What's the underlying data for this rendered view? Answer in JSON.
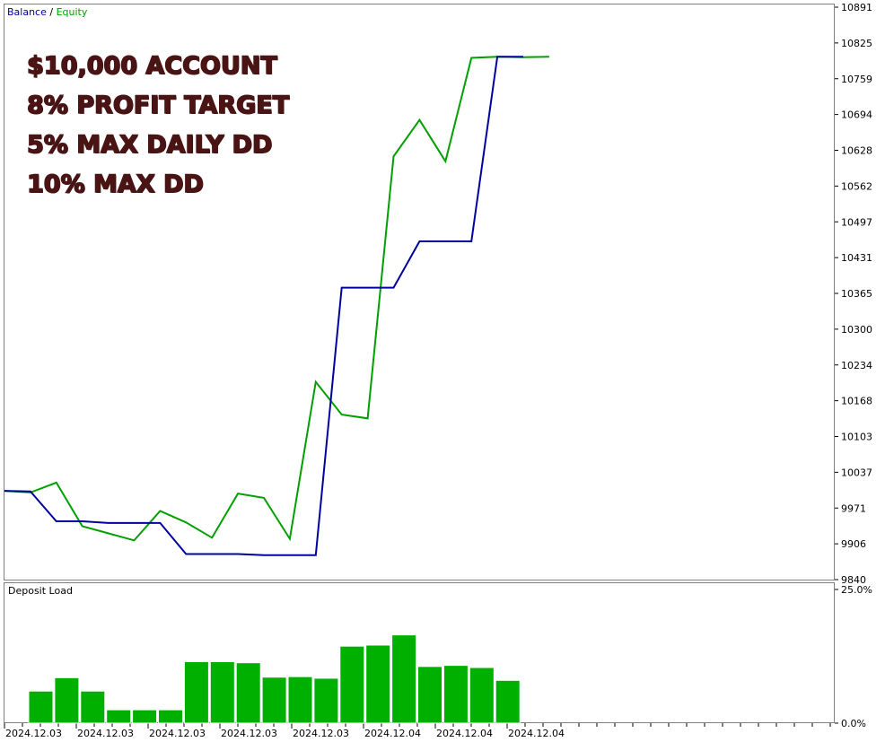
{
  "chart_data": [
    {
      "type": "line",
      "legend": [
        {
          "name": "Balance",
          "color": "#0000a0"
        },
        {
          "name": "Equity",
          "color": "#00a000"
        }
      ],
      "legend_separator": "/",
      "annotation_lines": [
        "$10,000 ACCOUNT",
        "8% PROFIT TARGET",
        "5% MAX DAILY DD",
        "10% MAX DD"
      ],
      "ylim": [
        9840,
        10891
      ],
      "y_ticks": [
        "10891",
        "10825",
        "10759",
        "10694",
        "10628",
        "10562",
        "10497",
        "10431",
        "10365",
        "10300",
        "10234",
        "10168",
        "10103",
        "10037",
        "9971",
        "9906",
        "9840"
      ],
      "grid": false,
      "series": [
        {
          "name": "Balance",
          "color": "#0000a0",
          "points": [
            [
              0,
              10003
            ],
            [
              1,
              10002
            ],
            [
              2,
              9947
            ],
            [
              3,
              9947
            ],
            [
              4,
              9944
            ],
            [
              5,
              9944
            ],
            [
              6,
              9944
            ],
            [
              7,
              9887
            ],
            [
              8,
              9887
            ],
            [
              9,
              9887
            ],
            [
              10,
              9885
            ],
            [
              11,
              9885
            ],
            [
              12,
              9885
            ],
            [
              13,
              10376
            ],
            [
              14,
              10376
            ],
            [
              15,
              10376
            ],
            [
              16,
              10461
            ],
            [
              17,
              10461
            ],
            [
              18,
              10461
            ],
            [
              19,
              10800
            ],
            [
              20,
              10800
            ]
          ]
        },
        {
          "name": "Equity",
          "color": "#00a000",
          "points": [
            [
              0,
              10003
            ],
            [
              1,
              10000
            ],
            [
              2,
              10018
            ],
            [
              3,
              9938
            ],
            [
              4,
              9925
            ],
            [
              5,
              9912
            ],
            [
              6,
              9966
            ],
            [
              7,
              9945
            ],
            [
              8,
              9917
            ],
            [
              9,
              9998
            ],
            [
              10,
              9990
            ],
            [
              11,
              9915
            ],
            [
              12,
              10203
            ],
            [
              13,
              10143
            ],
            [
              14,
              10136
            ],
            [
              15,
              10617
            ],
            [
              16,
              10684
            ],
            [
              17,
              10608
            ],
            [
              18,
              10798
            ],
            [
              19,
              10800
            ],
            [
              20,
              10799
            ],
            [
              21,
              10800
            ]
          ]
        }
      ]
    },
    {
      "type": "bar",
      "title": "Deposit Load",
      "ylim": [
        0,
        25
      ],
      "y_ticks": [
        "25.0%",
        "0.0%"
      ],
      "values": [
        6,
        8.5,
        6,
        2.5,
        2.5,
        2.5,
        11.5,
        11.5,
        11.3,
        8.6,
        8.7,
        8.4,
        14.4,
        14.6,
        16.5,
        10.6,
        10.8,
        10.4,
        8.0
      ],
      "bar_color": "#00b000",
      "x_ticks": [
        "2024.12.03",
        "2024.12.03",
        "2024.12.03",
        "2024.12.03",
        "2024.12.03",
        "2024.12.04",
        "2024.12.04",
        "2024.12.04"
      ]
    }
  ]
}
